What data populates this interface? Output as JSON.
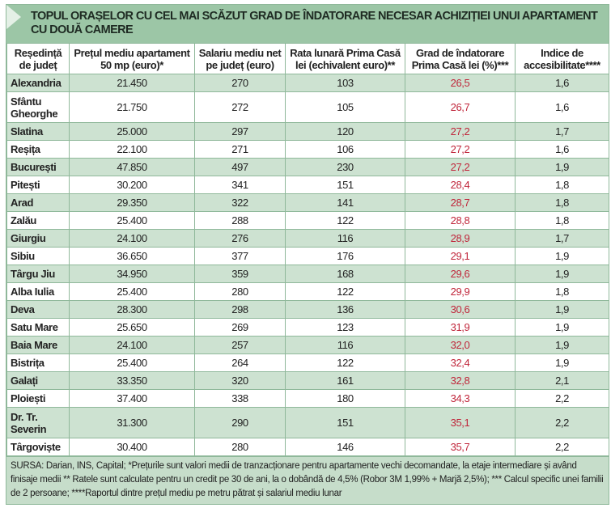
{
  "title": "TOPUL ORAȘELOR CU CEL MAI SCĂZUT GRAD DE ÎNDATORARE NECESAR ACHIZIȚIEI UNUI APARTAMENT CU DOUĂ CAMERE",
  "headers": [
    "Reședință de județ",
    "Prețul mediu apartament 50 mp (euro)*",
    "Salariu mediu net pe județ (euro)",
    "Rata lunară Prima Casă lei (echivalent euro)**",
    "Grad de îndatorare Prima Casă lei (%)***",
    "Indice de accesibilitate****"
  ],
  "rows": [
    [
      "Alexandria",
      "21.450",
      "270",
      "103",
      "26,5",
      "1,6"
    ],
    [
      "Sfântu Gheorghe",
      "21.750",
      "272",
      "105",
      "26,7",
      "1,6"
    ],
    [
      "Slatina",
      "25.000",
      "297",
      "120",
      "27,2",
      "1,7"
    ],
    [
      "Reșița",
      "22.100",
      "271",
      "106",
      "27,2",
      "1,6"
    ],
    [
      "București",
      "47.850",
      "497",
      "230",
      "27,2",
      "1,9"
    ],
    [
      "Pitești",
      "30.200",
      "341",
      "151",
      "28,4",
      "1,8"
    ],
    [
      "Arad",
      "29.350",
      "322",
      "141",
      "28,7",
      "1,8"
    ],
    [
      "Zalău",
      "25.400",
      "288",
      "122",
      "28,8",
      "1,8"
    ],
    [
      "Giurgiu",
      "24.100",
      "276",
      "116",
      "28,9",
      "1,7"
    ],
    [
      "Sibiu",
      "36.650",
      "377",
      "176",
      "29,1",
      "1,9"
    ],
    [
      "Târgu Jiu",
      "34.950",
      "359",
      "168",
      "29,6",
      "1,9"
    ],
    [
      "Alba Iulia",
      "25.400",
      "280",
      "122",
      "29,9",
      "1,8"
    ],
    [
      "Deva",
      "28.300",
      "298",
      "136",
      "30,6",
      "1,9"
    ],
    [
      "Satu Mare",
      "25.650",
      "269",
      "123",
      "31,9",
      "1,9"
    ],
    [
      "Baia Mare",
      "24.100",
      "257",
      "116",
      "32,0",
      "1,9"
    ],
    [
      "Bistrița",
      "25.400",
      "264",
      "122",
      "32,4",
      "1,9"
    ],
    [
      "Galați",
      "33.350",
      "320",
      "161",
      "32,8",
      "2,1"
    ],
    [
      "Ploiești",
      "37.400",
      "338",
      "180",
      "34,3",
      "2,2"
    ],
    [
      "Dr. Tr. Severin",
      "31.300",
      "290",
      "151",
      "35,1",
      "2,2"
    ],
    [
      "Târgoviște",
      "30.400",
      "280",
      "146",
      "35,7",
      "2,2"
    ]
  ],
  "footnote": "SURSA: Darian, INS, Capital; *Prețurile sunt valori medii de tranzacționare pentru apartamente vechi decomandate, la etaje intermediare și având finisaje medii ** Ratele sunt calculate pentru un credit pe 30 de ani, la o dobândă de 4,5% (Robor 3M 1,99% + Marjă 2,5%); *** Calcul specific unei familii de 2 persoane; ****Raportul dintre prețul mediu pe metru pătrat și salariul mediu lunar",
  "colors": {
    "title_bg": "#9cc6a6",
    "row_green": "#cde2d1",
    "highlight_red": "#c0253a"
  }
}
